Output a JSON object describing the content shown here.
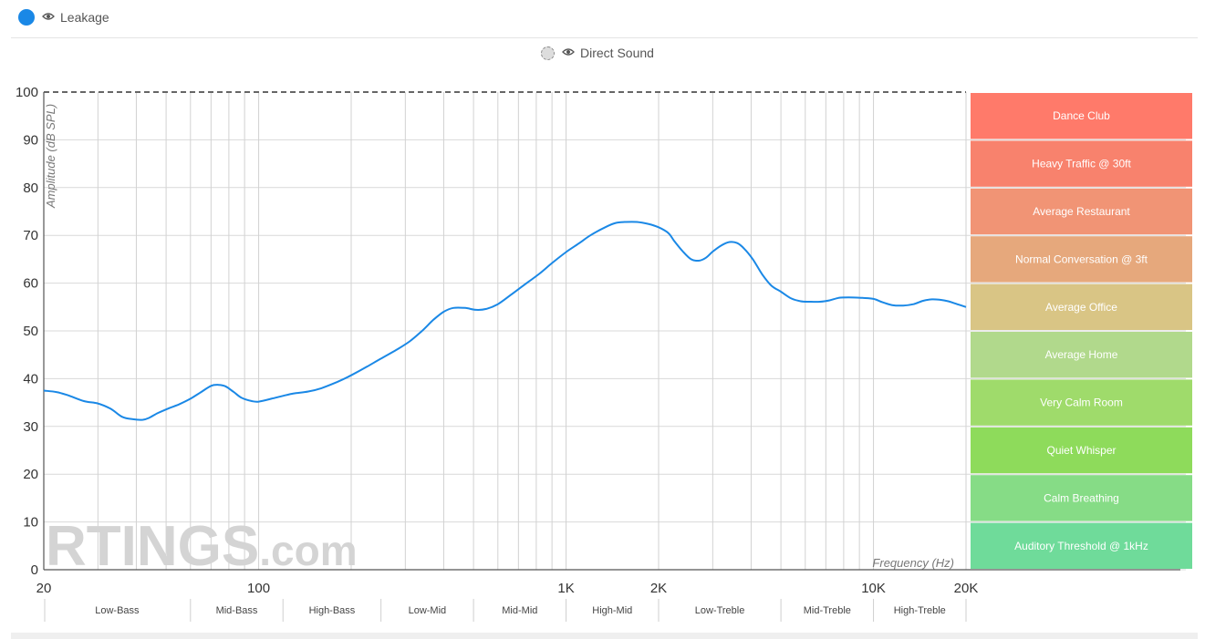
{
  "legend": {
    "primary": {
      "label": "Leakage",
      "color": "#1a88e6",
      "icon": "eye-icon"
    },
    "secondary": {
      "label": "Direct Sound",
      "icon": "eye-icon"
    }
  },
  "watermark": {
    "brand": "RTINGS",
    "suffix": ".com"
  },
  "chart_data": {
    "type": "line",
    "xlabel": "Frequency (Hz)",
    "ylabel": "Amplitude (dB SPL)",
    "x_scale": "log",
    "xlim": [
      20,
      20000
    ],
    "ylim": [
      0,
      100
    ],
    "y_ticks": [
      0,
      10,
      20,
      30,
      40,
      50,
      60,
      70,
      80,
      90,
      100
    ],
    "x_tick_labels": [
      {
        "value": 20,
        "label": "20"
      },
      {
        "value": 100,
        "label": "100"
      },
      {
        "value": 1000,
        "label": "1K"
      },
      {
        "value": 2000,
        "label": "2K"
      },
      {
        "value": 10000,
        "label": "10K"
      },
      {
        "value": 20000,
        "label": "20K"
      }
    ],
    "grid": true,
    "reference_line": {
      "y": 100,
      "style": "dashed"
    },
    "series": [
      {
        "name": "Leakage",
        "color": "#1a88e6",
        "points": [
          [
            20,
            37.5
          ],
          [
            22,
            37.2
          ],
          [
            24,
            36.5
          ],
          [
            27,
            35.3
          ],
          [
            30,
            34.8
          ],
          [
            33,
            33.7
          ],
          [
            36,
            32.0
          ],
          [
            39,
            31.5
          ],
          [
            42,
            31.4
          ],
          [
            44,
            31.8
          ],
          [
            47,
            32.8
          ],
          [
            51,
            33.8
          ],
          [
            55,
            34.6
          ],
          [
            60,
            35.8
          ],
          [
            65,
            37.2
          ],
          [
            70,
            38.5
          ],
          [
            74,
            38.7
          ],
          [
            78,
            38.4
          ],
          [
            83,
            37.2
          ],
          [
            88,
            36.0
          ],
          [
            95,
            35.3
          ],
          [
            100,
            35.2
          ],
          [
            110,
            35.8
          ],
          [
            120,
            36.4
          ],
          [
            130,
            36.9
          ],
          [
            145,
            37.3
          ],
          [
            160,
            38.0
          ],
          [
            180,
            39.3
          ],
          [
            200,
            40.7
          ],
          [
            225,
            42.5
          ],
          [
            250,
            44.2
          ],
          [
            280,
            46.0
          ],
          [
            310,
            47.8
          ],
          [
            340,
            50.0
          ],
          [
            370,
            52.3
          ],
          [
            400,
            54.0
          ],
          [
            430,
            54.8
          ],
          [
            470,
            54.8
          ],
          [
            510,
            54.4
          ],
          [
            550,
            54.6
          ],
          [
            600,
            55.6
          ],
          [
            660,
            57.5
          ],
          [
            730,
            59.6
          ],
          [
            820,
            62.0
          ],
          [
            900,
            64.2
          ],
          [
            1000,
            66.5
          ],
          [
            1100,
            68.3
          ],
          [
            1200,
            70.0
          ],
          [
            1350,
            71.8
          ],
          [
            1450,
            72.6
          ],
          [
            1550,
            72.8
          ],
          [
            1700,
            72.8
          ],
          [
            1850,
            72.4
          ],
          [
            2000,
            71.7
          ],
          [
            2150,
            70.5
          ],
          [
            2250,
            68.8
          ],
          [
            2400,
            66.6
          ],
          [
            2550,
            65.0
          ],
          [
            2700,
            64.7
          ],
          [
            2850,
            65.3
          ],
          [
            3000,
            66.6
          ],
          [
            3200,
            67.9
          ],
          [
            3400,
            68.6
          ],
          [
            3600,
            68.4
          ],
          [
            3800,
            67.2
          ],
          [
            4050,
            65.0
          ],
          [
            4350,
            61.8
          ],
          [
            4650,
            59.5
          ],
          [
            5000,
            58.2
          ],
          [
            5400,
            56.8
          ],
          [
            5800,
            56.2
          ],
          [
            6200,
            56.1
          ],
          [
            6700,
            56.1
          ],
          [
            7200,
            56.4
          ],
          [
            7700,
            56.9
          ],
          [
            8300,
            57.0
          ],
          [
            9200,
            56.9
          ],
          [
            10000,
            56.7
          ],
          [
            10700,
            56.0
          ],
          [
            11500,
            55.4
          ],
          [
            12500,
            55.3
          ],
          [
            13500,
            55.6
          ],
          [
            14500,
            56.3
          ],
          [
            15500,
            56.6
          ],
          [
            16500,
            56.5
          ],
          [
            17500,
            56.2
          ],
          [
            18500,
            55.7
          ],
          [
            20000,
            55.0
          ]
        ]
      }
    ],
    "frequency_bands": [
      {
        "label": "Low-Bass",
        "from": 20,
        "to": 60
      },
      {
        "label": "Mid-Bass",
        "from": 60,
        "to": 120
      },
      {
        "label": "High-Bass",
        "from": 120,
        "to": 250
      },
      {
        "label": "Low-Mid",
        "from": 250,
        "to": 500
      },
      {
        "label": "Mid-Mid",
        "from": 500,
        "to": 1000
      },
      {
        "label": "High-Mid",
        "from": 1000,
        "to": 2000
      },
      {
        "label": "Low-Treble",
        "from": 2000,
        "to": 5000
      },
      {
        "label": "Mid-Treble",
        "from": 5000,
        "to": 10000
      },
      {
        "label": "High-Treble",
        "from": 10000,
        "to": 20000
      }
    ],
    "noise_zones": [
      {
        "label": "Dance Club",
        "from": 90,
        "to": 100,
        "color": "#ff7a6a"
      },
      {
        "label": "Heavy Traffic @ 30ft",
        "from": 80,
        "to": 90,
        "color": "#f8826d"
      },
      {
        "label": "Average Restaurant",
        "from": 70,
        "to": 80,
        "color": "#f19475"
      },
      {
        "label": "Normal Conversation @ 3ft",
        "from": 60,
        "to": 70,
        "color": "#e6a87c"
      },
      {
        "label": "Average Office",
        "from": 50,
        "to": 60,
        "color": "#d9c585"
      },
      {
        "label": "Average Home",
        "from": 40,
        "to": 50,
        "color": "#b1d98c"
      },
      {
        "label": "Very Calm Room",
        "from": 30,
        "to": 40,
        "color": "#9fdb6b"
      },
      {
        "label": "Quiet Whisper",
        "from": 20,
        "to": 30,
        "color": "#8edb5b"
      },
      {
        "label": "Calm Breathing",
        "from": 10,
        "to": 20,
        "color": "#86dc86"
      },
      {
        "label": "Auditory Threshold @ 1kHz",
        "from": 0,
        "to": 10,
        "color": "#6fdb9a"
      }
    ]
  }
}
